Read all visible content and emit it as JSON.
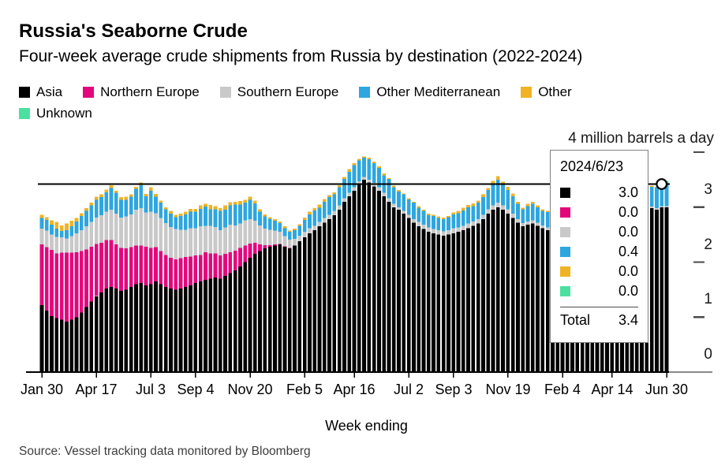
{
  "header": {
    "title": "Russia's Seaborne Crude",
    "subtitle": "Four-week average crude shipments from Russia by destination (2022-2024)"
  },
  "legend": {
    "items": [
      {
        "label": "Asia",
        "color": "#000000",
        "row": 0
      },
      {
        "label": "Northern Europe",
        "color": "#e4077c",
        "row": 0
      },
      {
        "label": "Southern Europe",
        "color": "#c9c9c9",
        "row": 0
      },
      {
        "label": "Other Mediterranean",
        "color": "#2ea6e0",
        "row": 0
      },
      {
        "label": "Other",
        "color": "#f0b323",
        "row": 0
      },
      {
        "label": "Unknown",
        "color": "#4ce0a0",
        "row": 1
      }
    ]
  },
  "axis": {
    "unit_label": "4 million barrels a day",
    "y_tick_labels": [
      "3",
      "2",
      "1",
      "0"
    ],
    "xlabel": "Week ending"
  },
  "source": "Source: Vessel tracking data monitored by Bloomberg",
  "tooltip": {
    "date": "2024/6/23",
    "rows": [
      {
        "series": "Asia",
        "color": "#000000",
        "value": "3.0"
      },
      {
        "series": "Northern Europe",
        "color": "#e4077c",
        "value": "0.0"
      },
      {
        "series": "Southern Europe",
        "color": "#c9c9c9",
        "value": "0.0"
      },
      {
        "series": "Other Mediterranean",
        "color": "#2ea6e0",
        "value": "0.4"
      },
      {
        "series": "Other",
        "color": "#f0b323",
        "value": "0.0"
      },
      {
        "series": "Unknown",
        "color": "#4ce0a0",
        "value": "0.0"
      }
    ],
    "total_label": "Total",
    "total_value": "3.4"
  },
  "chart_data": {
    "type": "bar",
    "stacked": true,
    "title": "Russia's Seaborne Crude",
    "subtitle": "Four-week average crude shipments from Russia by destination (2022-2024)",
    "ylabel": "4 million barrels a day",
    "xlabel": "Week ending",
    "ylim": [
      0,
      4
    ],
    "y_major_ticks": [
      1,
      2,
      3,
      4
    ],
    "grid": false,
    "legend_position": "top",
    "x_unit": "weekly, Jan 30 2022 - Jun 30 2024",
    "x_tick_labels": [
      "Jan 30",
      "Apr 17",
      "Jul 3",
      "Sep 4",
      "Nov 20",
      "Feb 5",
      "Apr 16",
      "Jul 2",
      "Sep 3",
      "Nov 19",
      "Feb 4",
      "Apr 14",
      "Jun 30"
    ],
    "x_tick_indices": [
      0,
      11,
      22,
      31,
      42,
      53,
      63,
      74,
      83,
      94,
      105,
      115,
      126
    ],
    "hover_index": 125,
    "hover_total": 3.42,
    "series": [
      {
        "name": "asia",
        "label": "Asia",
        "color": "#000000",
        "values": [
          1.22,
          1.12,
          1.02,
          0.98,
          0.95,
          0.92,
          0.95,
          1.0,
          1.08,
          1.18,
          1.28,
          1.38,
          1.45,
          1.52,
          1.55,
          1.52,
          1.48,
          1.5,
          1.55,
          1.6,
          1.62,
          1.58,
          1.6,
          1.65,
          1.6,
          1.55,
          1.52,
          1.5,
          1.52,
          1.55,
          1.58,
          1.62,
          1.65,
          1.68,
          1.7,
          1.72,
          1.7,
          1.75,
          1.8,
          1.85,
          1.92,
          2.0,
          2.08,
          2.15,
          2.2,
          2.25,
          2.28,
          2.3,
          2.32,
          2.28,
          2.25,
          2.3,
          2.38,
          2.45,
          2.52,
          2.58,
          2.65,
          2.72,
          2.78,
          2.85,
          2.95,
          3.1,
          3.2,
          3.3,
          3.42,
          3.5,
          3.45,
          3.38,
          3.3,
          3.2,
          3.1,
          3.0,
          2.95,
          2.88,
          2.8,
          2.72,
          2.65,
          2.6,
          2.55,
          2.52,
          2.5,
          2.48,
          2.5,
          2.52,
          2.55,
          2.58,
          2.62,
          2.66,
          2.7,
          2.78,
          2.88,
          2.95,
          3.0,
          2.95,
          2.88,
          2.8,
          2.72,
          2.65,
          2.68,
          2.7,
          2.66,
          2.62,
          2.58,
          2.55,
          2.58,
          2.62,
          2.66,
          2.7,
          2.75,
          2.8,
          2.85,
          2.9,
          2.95,
          3.0,
          3.05,
          3.08,
          3.05,
          3.02,
          3.05,
          3.08,
          3.05,
          3.02,
          3.0,
          2.98,
          2.95,
          3.0,
          3.0
        ]
      },
      {
        "name": "northern_europe",
        "label": "Northern Europe",
        "color": "#e4077c",
        "values": [
          1.1,
          1.15,
          1.2,
          1.18,
          1.22,
          1.25,
          1.22,
          1.18,
          1.12,
          1.05,
          1.0,
          0.95,
          0.9,
          0.88,
          0.85,
          0.8,
          0.78,
          0.75,
          0.72,
          0.7,
          0.68,
          0.7,
          0.66,
          0.62,
          0.6,
          0.58,
          0.56,
          0.55,
          0.55,
          0.54,
          0.52,
          0.5,
          0.48,
          0.5,
          0.46,
          0.44,
          0.42,
          0.4,
          0.38,
          0.36,
          0.34,
          0.3,
          0.26,
          0.2,
          0.12,
          0.06,
          0.03,
          0.02,
          0.01,
          0.01,
          0.01,
          0,
          0,
          0,
          0,
          0,
          0,
          0,
          0,
          0,
          0,
          0,
          0,
          0,
          0,
          0,
          0,
          0,
          0,
          0,
          0,
          0,
          0,
          0,
          0,
          0,
          0,
          0,
          0,
          0,
          0,
          0,
          0,
          0,
          0,
          0,
          0,
          0,
          0,
          0,
          0,
          0,
          0,
          0,
          0,
          0,
          0,
          0,
          0,
          0,
          0,
          0,
          0,
          0,
          0,
          0,
          0,
          0,
          0,
          0,
          0,
          0,
          0,
          0,
          0,
          0,
          0,
          0,
          0,
          0,
          0,
          0,
          0,
          0,
          0,
          0,
          0
        ]
      },
      {
        "name": "southern_europe",
        "label": "Southern Europe",
        "color": "#c9c9c9",
        "values": [
          0.29,
          0.3,
          0.28,
          0.3,
          0.28,
          0.26,
          0.3,
          0.34,
          0.38,
          0.42,
          0.45,
          0.48,
          0.5,
          0.52,
          0.55,
          0.56,
          0.55,
          0.58,
          0.6,
          0.65,
          0.68,
          0.62,
          0.66,
          0.62,
          0.6,
          0.58,
          0.56,
          0.55,
          0.52,
          0.5,
          0.52,
          0.5,
          0.52,
          0.48,
          0.5,
          0.48,
          0.46,
          0.48,
          0.5,
          0.46,
          0.44,
          0.46,
          0.44,
          0.4,
          0.35,
          0.3,
          0.28,
          0.25,
          0.22,
          0.18,
          0.15,
          0.12,
          0.1,
          0.1,
          0.1,
          0.08,
          0.08,
          0.08,
          0.08,
          0.08,
          0.08,
          0.06,
          0.06,
          0.06,
          0.05,
          0.05,
          0.05,
          0.06,
          0.06,
          0.06,
          0.06,
          0.06,
          0.05,
          0.05,
          0.06,
          0.06,
          0.08,
          0.08,
          0.08,
          0.08,
          0.08,
          0.08,
          0.08,
          0.1,
          0.08,
          0.08,
          0.08,
          0.08,
          0.08,
          0.08,
          0.08,
          0.08,
          0.08,
          0.08,
          0.08,
          0.08,
          0.06,
          0.06,
          0.06,
          0.06,
          0.06,
          0.05,
          0.05,
          0.05,
          0.05,
          0.05,
          0.05,
          0.05,
          0.05,
          0.05,
          0.05,
          0.05,
          0.05,
          0.05,
          0.05,
          0.04,
          0.04,
          0.04,
          0.04,
          0.04,
          0.04,
          0.04,
          0.04,
          0.03,
          0.03,
          0.02,
          0.02
        ]
      },
      {
        "name": "other_mediterranean",
        "label": "Other Mediterranean",
        "color": "#2ea6e0",
        "values": [
          0.19,
          0.2,
          0.18,
          0.15,
          0.12,
          0.15,
          0.18,
          0.22,
          0.26,
          0.28,
          0.3,
          0.32,
          0.33,
          0.35,
          0.4,
          0.38,
          0.32,
          0.3,
          0.32,
          0.38,
          0.42,
          0.3,
          0.38,
          0.3,
          0.28,
          0.25,
          0.24,
          0.22,
          0.25,
          0.28,
          0.3,
          0.3,
          0.32,
          0.35,
          0.3,
          0.32,
          0.35,
          0.32,
          0.35,
          0.38,
          0.35,
          0.32,
          0.35,
          0.32,
          0.25,
          0.22,
          0.2,
          0.18,
          0.16,
          0.15,
          0.14,
          0.16,
          0.18,
          0.22,
          0.25,
          0.28,
          0.26,
          0.3,
          0.32,
          0.3,
          0.33,
          0.35,
          0.38,
          0.4,
          0.38,
          0.35,
          0.37,
          0.36,
          0.35,
          0.32,
          0.35,
          0.3,
          0.28,
          0.3,
          0.28,
          0.3,
          0.26,
          0.25,
          0.22,
          0.24,
          0.22,
          0.22,
          0.24,
          0.25,
          0.26,
          0.28,
          0.3,
          0.28,
          0.3,
          0.32,
          0.35,
          0.4,
          0.42,
          0.38,
          0.35,
          0.32,
          0.28,
          0.25,
          0.28,
          0.3,
          0.28,
          0.26,
          0.28,
          0.28,
          0.3,
          0.28,
          0.3,
          0.32,
          0.3,
          0.32,
          0.35,
          0.36,
          0.38,
          0.4,
          0.38,
          0.4,
          0.38,
          0.36,
          0.38,
          0.4,
          0.38,
          0.38,
          0.38,
          0.36,
          0.38,
          0.4,
          0.42
        ]
      },
      {
        "name": "other",
        "label": "Other",
        "color": "#f0b323",
        "values": [
          0.06,
          0.05,
          0.08,
          0.12,
          0.1,
          0.12,
          0.1,
          0.06,
          0.05,
          0.05,
          0.05,
          0.06,
          0.05,
          0.05,
          0.05,
          0.04,
          0.05,
          0.06,
          0.04,
          0.04,
          0.05,
          0.04,
          0.06,
          0.05,
          0.04,
          0.04,
          0.05,
          0.04,
          0.04,
          0.05,
          0.05,
          0.05,
          0.06,
          0.05,
          0.08,
          0.06,
          0.05,
          0.08,
          0.06,
          0.05,
          0.06,
          0.05,
          0.06,
          0.05,
          0.04,
          0.04,
          0.03,
          0.03,
          0.03,
          0.03,
          0.02,
          0.03,
          0.03,
          0.04,
          0.05,
          0.04,
          0.06,
          0.05,
          0.04,
          0.04,
          0.04,
          0.04,
          0.05,
          0.04,
          0.03,
          0.02,
          0.03,
          0.03,
          0.03,
          0.03,
          0.02,
          0.03,
          0.03,
          0.02,
          0.02,
          0.02,
          0.03,
          0.02,
          0.03,
          0.02,
          0.03,
          0.03,
          0.02,
          0.03,
          0.04,
          0.05,
          0.04,
          0.05,
          0.04,
          0.05,
          0.04,
          0.05,
          0.06,
          0.05,
          0.06,
          0.05,
          0.04,
          0.03,
          0.04,
          0.04,
          0.03,
          0.03,
          0.02,
          0.03,
          0.02,
          0.03,
          0.02,
          0.03,
          0.03,
          0.02,
          0.03,
          0.02,
          0.03,
          0.02,
          0.03,
          0.02,
          0.02,
          0.03,
          0.02,
          0.02,
          0.02,
          0.02,
          0.02,
          0.02,
          0.01,
          0,
          0
        ]
      },
      {
        "name": "unknown",
        "label": "Unknown",
        "color": "#4ce0a0",
        "values": [
          0,
          0,
          0,
          0,
          0,
          0,
          0,
          0,
          0,
          0,
          0,
          0,
          0,
          0,
          0,
          0,
          0,
          0,
          0,
          0,
          0,
          0,
          0,
          0,
          0,
          0,
          0,
          0,
          0,
          0,
          0,
          0,
          0,
          0,
          0,
          0,
          0,
          0,
          0,
          0,
          0,
          0,
          0,
          0,
          0,
          0,
          0,
          0,
          0,
          0,
          0,
          0,
          0,
          0,
          0,
          0,
          0,
          0,
          0,
          0,
          0,
          0,
          0,
          0,
          0,
          0,
          0,
          0,
          0,
          0,
          0,
          0,
          0,
          0,
          0,
          0,
          0,
          0,
          0,
          0,
          0,
          0,
          0,
          0,
          0,
          0,
          0,
          0,
          0,
          0,
          0,
          0,
          0,
          0,
          0,
          0,
          0,
          0,
          0,
          0,
          0,
          0,
          0,
          0,
          0,
          0,
          0,
          0,
          0,
          0,
          0,
          0,
          0,
          0,
          0,
          0,
          0,
          0,
          0,
          0,
          0,
          0,
          0,
          0,
          0,
          0,
          0.04
        ]
      }
    ]
  }
}
